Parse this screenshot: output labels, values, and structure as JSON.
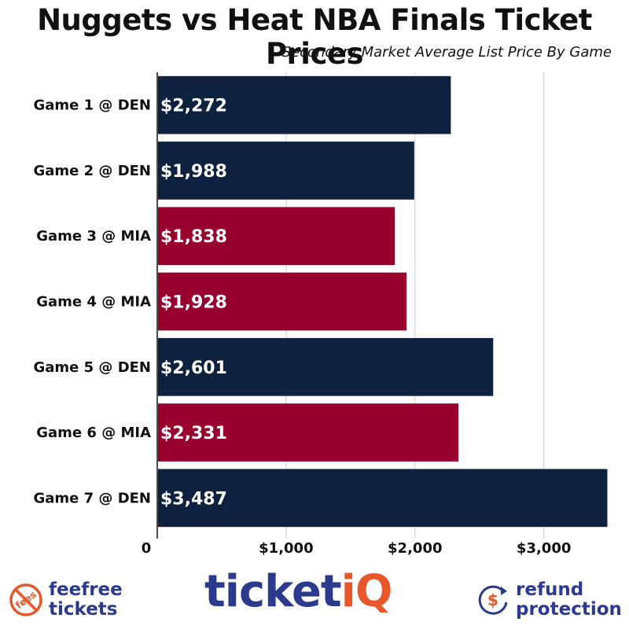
{
  "header": {
    "title": "Nuggets vs Heat NBA Finals Ticket Prices",
    "subtitle": "Secondary Market Average List Price By Game"
  },
  "colors": {
    "nuggets": "#0e2240",
    "heat": "#98002e",
    "axis": "#111111",
    "grid": "#cccccc"
  },
  "chart_data": {
    "type": "bar",
    "orientation": "horizontal",
    "categories": [
      "Game 1 @ DEN",
      "Game 2 @ DEN",
      "Game 3 @ MIA",
      "Game 4 @ MIA",
      "Game 5 @ DEN",
      "Game 6 @ MIA",
      "Game 7 @ DEN"
    ],
    "values": [
      2272,
      1988,
      1838,
      1928,
      2601,
      2331,
      3487
    ],
    "value_labels": [
      "$2,272",
      "$1,988",
      "$1,838",
      "$1,928",
      "$2,601",
      "$2,331",
      "$3,487"
    ],
    "bar_colors": [
      "#0e2240",
      "#0e2240",
      "#98002e",
      "#98002e",
      "#0e2240",
      "#98002e",
      "#0e2240"
    ],
    "xlim": [
      0,
      3600
    ],
    "xticks": [
      0,
      1000,
      2000,
      3000
    ],
    "xtick_labels": [
      "0",
      "$1,000",
      "$2,000",
      "$3,000"
    ],
    "grid": true,
    "title": "Nuggets vs Heat NBA Finals Ticket Prices",
    "subtitle": "Secondary Market Average List Price By Game"
  },
  "footer": {
    "fee_icon": "no-fees-icon",
    "fee_icon_text": "fees",
    "fee_line1": "feefree",
    "fee_line2": "tickets",
    "brand_main": "ticket",
    "brand_accent": "iQ",
    "refund_icon": "refund-dollar-icon",
    "refund_line1": "refund",
    "refund_line2": "protection"
  }
}
